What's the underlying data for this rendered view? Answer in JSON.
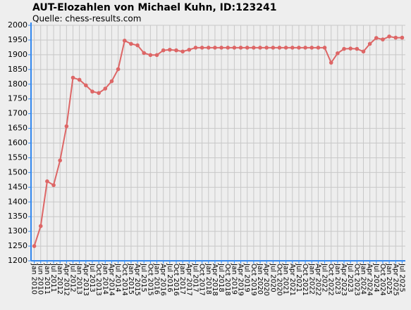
{
  "chart_data": {
    "type": "line",
    "title": "AUT-Elozahlen von Michael Kuhn, ID:123241",
    "subtitle": "Quelle: chess-results.com",
    "categories": [
      "Jan 2010",
      "Jun 2010",
      "Jan 2011",
      "Jul 2011",
      "Jan 2012",
      "Apr 2012",
      "Jul 2012",
      "Jan 2013",
      "Apr 2013",
      "Jul 2013",
      "Oct 2013",
      "Jan 2014",
      "Apr 2014",
      "Jul 2014",
      "Oct 2014",
      "Jan 2015",
      "Apr 2015",
      "Jul 2015",
      "Oct 2015",
      "Jan 2016",
      "Apr 2016",
      "Jul 2016",
      "Oct 2016",
      "Jan 2017",
      "Apr 2017",
      "Jul 2017",
      "Oct 2017",
      "Jan 2018",
      "Apr 2018",
      "Jul 2018",
      "Oct 2018",
      "Jan 2019",
      "Apr 2019",
      "Jul 2019",
      "Oct 2019",
      "Jan 2020",
      "Apr 2020",
      "Jul 2020",
      "Oct 2020",
      "Jan 2021",
      "Apr 2021",
      "Jul 2021",
      "Oct 2021",
      "Jan 2022",
      "Apr 2022",
      "Jul 2022",
      "Oct 2022",
      "Jan 2023",
      "Apr 2023",
      "Jul 2023",
      "Oct 2023",
      "Jan 2024",
      "Apr 2024",
      "Jul 2024",
      "Oct 2024",
      "Jan 2025",
      "Apr 2025",
      "Jul 2025"
    ],
    "values": [
      1250,
      1318,
      1470,
      1457,
      1541,
      1657,
      1822,
      1815,
      1796,
      1775,
      1770,
      1785,
      1810,
      1851,
      1948,
      1937,
      1932,
      1906,
      1899,
      1899,
      1915,
      1917,
      1915,
      1911,
      1917,
      1924,
      1924,
      1924,
      1924,
      1924,
      1924,
      1924,
      1924,
      1924,
      1924,
      1924,
      1924,
      1924,
      1924,
      1924,
      1924,
      1924,
      1924,
      1924,
      1924,
      1924,
      1873,
      1905,
      1920,
      1921,
      1920,
      1911,
      1937,
      1957,
      1952,
      1962,
      1958,
      1958
    ],
    "color": "#dd6666",
    "ylim": [
      1200,
      2000
    ],
    "yticks": [
      1200,
      1250,
      1300,
      1350,
      1400,
      1450,
      1500,
      1550,
      1600,
      1650,
      1700,
      1750,
      1800,
      1850,
      1900,
      1950,
      2000
    ],
    "grid": true
  }
}
